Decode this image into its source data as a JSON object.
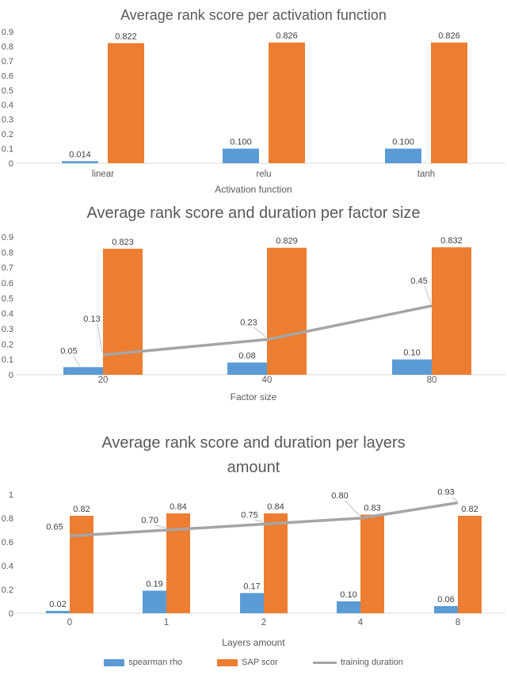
{
  "colors": {
    "blue": "#5B9BD5",
    "orange": "#ED7D31",
    "line_gray": "#A5A5A5",
    "leader_gray": "#BFBFBF",
    "baseline": "#D9D9D9",
    "title_text": "#595959",
    "label_text": "#3F3F3F"
  },
  "legend": {
    "items": [
      {
        "label": "spearman rho",
        "swatch": "blue",
        "kind": "bar"
      },
      {
        "label": "SAP scor",
        "swatch": "orange",
        "kind": "bar"
      },
      {
        "label": "training duration",
        "swatch": "line_gray",
        "kind": "line"
      }
    ]
  },
  "chart_data": [
    {
      "type": "bar",
      "title": "Average rank score per activation function",
      "xlabel": "Activation function",
      "ylabel": "",
      "categories": [
        "linear",
        "relu",
        "tanh"
      ],
      "ylim": [
        0,
        0.9
      ],
      "yticks": [
        "0",
        "0.1",
        "0.2",
        "0.3",
        "0.4",
        "0.5",
        "0.6",
        "0.7",
        "0.8",
        "0.9"
      ],
      "grid": false,
      "legend_position": "none",
      "series": [
        {
          "name": "spearman rho",
          "kind": "bar",
          "color": "blue",
          "values": [
            0.014,
            0.1,
            0.1
          ],
          "labels": [
            "0.014",
            "0.100",
            "0.100"
          ]
        },
        {
          "name": "SAP scor",
          "kind": "bar",
          "color": "orange",
          "values": [
            0.822,
            0.826,
            0.826
          ],
          "labels": [
            "0.822",
            "0.826",
            "0.826"
          ]
        }
      ]
    },
    {
      "type": "bar",
      "title": "Average rank score and duration per factor size",
      "xlabel": "Factor size",
      "ylabel": "",
      "categories": [
        "20",
        "40",
        "80"
      ],
      "ylim": [
        0,
        0.9
      ],
      "yticks": [
        "0",
        "0.1",
        "0.2",
        "0.3",
        "0.4",
        "0.5",
        "0.6",
        "0.7",
        "0.8",
        "0.9"
      ],
      "grid": false,
      "legend_position": "none",
      "series": [
        {
          "name": "spearman rho",
          "kind": "bar",
          "color": "blue",
          "values": [
            0.05,
            0.08,
            0.1
          ],
          "labels": [
            "0.05",
            "0.08",
            "0.10"
          ]
        },
        {
          "name": "SAP scor",
          "kind": "bar",
          "color": "orange",
          "values": [
            0.823,
            0.829,
            0.832
          ],
          "labels": [
            "0.823",
            "0.829",
            "0.832"
          ]
        },
        {
          "name": "training duration",
          "kind": "line",
          "color": "line_gray",
          "values": [
            0.13,
            0.23,
            0.45
          ],
          "labels": [
            "0.13",
            "0.23",
            "0.45"
          ]
        }
      ]
    },
    {
      "type": "bar",
      "title": "Average rank score and duration per layers amount",
      "title_lines": [
        "Average rank score and duration per layers",
        "amount"
      ],
      "xlabel": "Layers amount",
      "ylabel": "",
      "categories": [
        "0",
        "1",
        "2",
        "4",
        "8"
      ],
      "ylim": [
        0,
        1
      ],
      "yticks": [
        "0",
        "0.2",
        "0.4",
        "0.6",
        "0.8",
        "1"
      ],
      "grid": false,
      "legend_position": "bottom",
      "series": [
        {
          "name": "spearman rho",
          "kind": "bar",
          "color": "blue",
          "values": [
            0.02,
            0.19,
            0.17,
            0.1,
            0.06
          ],
          "labels": [
            "0.02",
            "0.19",
            "0.17",
            "0.10",
            "0.06"
          ]
        },
        {
          "name": "SAP scor",
          "kind": "bar",
          "color": "orange",
          "values": [
            0.82,
            0.84,
            0.84,
            0.83,
            0.82
          ],
          "labels": [
            "0.82",
            "0.84",
            "0.84",
            "0.83",
            "0.82"
          ]
        },
        {
          "name": "training duration",
          "kind": "line",
          "color": "line_gray",
          "values": [
            0.65,
            0.7,
            0.75,
            0.8,
            0.93
          ],
          "labels": [
            "0.65",
            "0.70",
            "0.75",
            "0.80",
            "0.93"
          ]
        }
      ]
    }
  ]
}
